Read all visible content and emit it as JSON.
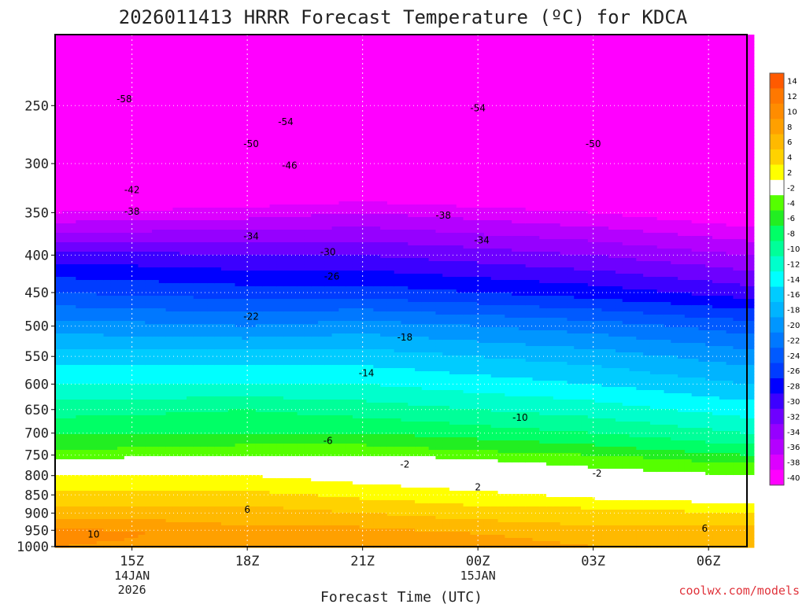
{
  "chart_data": {
    "type": "heatmap",
    "title": "2026011413 HRRR Forecast Temperature (ºC) for KDCA",
    "xlabel": "Forecast Time (UTC)",
    "ylabel": "",
    "credit": "coolwx.com/models",
    "x_start_hour": 13,
    "x_end_hour": 31,
    "ylim": [
      1000,
      200
    ],
    "yscale": "log",
    "y_ticks": [
      250,
      300,
      350,
      400,
      450,
      500,
      550,
      600,
      650,
      700,
      750,
      800,
      850,
      900,
      950,
      1000
    ],
    "x_ticks": [
      {
        "hour": 15,
        "lines": [
          "15Z",
          "14JAN",
          "2026"
        ]
      },
      {
        "hour": 18,
        "lines": [
          "18Z"
        ]
      },
      {
        "hour": 21,
        "lines": [
          "21Z"
        ]
      },
      {
        "hour": 24,
        "lines": [
          "00Z",
          "15JAN"
        ]
      },
      {
        "hour": 27,
        "lines": [
          "03Z"
        ]
      },
      {
        "hour": 30,
        "lines": [
          "06Z"
        ]
      }
    ],
    "colorbar": {
      "levels": [
        14,
        12,
        10,
        8,
        6,
        4,
        2,
        -2,
        -4,
        -6,
        -8,
        -10,
        -12,
        -14,
        -16,
        -18,
        -20,
        -22,
        -24,
        -26,
        -28,
        -30,
        -32,
        -34,
        -36,
        -38,
        -40
      ],
      "colors": [
        "#ff5a00",
        "#ff7800",
        "#ff8c00",
        "#ffa000",
        "#ffb900",
        "#ffd200",
        "#ffff00",
        "#ffffff",
        "#55ff00",
        "#22ee22",
        "#00ff66",
        "#00ff99",
        "#00ffcc",
        "#00ffff",
        "#00ccff",
        "#00b4ff",
        "#0096ff",
        "#0078ff",
        "#005aff",
        "#003cff",
        "#0000ff",
        "#3c00ff",
        "#6e00ff",
        "#9600ff",
        "#b400ff",
        "#dc00ff",
        "#ff00ff"
      ]
    },
    "profiles": [
      {
        "hour": 13,
        "temps": [
          [
            1000,
            10
          ],
          [
            960,
            11
          ],
          [
            940,
            10
          ],
          [
            900,
            7
          ],
          [
            860,
            5
          ],
          [
            820,
            3
          ],
          [
            800,
            2
          ],
          [
            790,
            0
          ],
          [
            770,
            -1
          ],
          [
            740,
            -4
          ],
          [
            700,
            -6
          ],
          [
            650,
            -9
          ],
          [
            600,
            -12
          ],
          [
            550,
            -15
          ],
          [
            500,
            -19
          ],
          [
            450,
            -24
          ],
          [
            400,
            -29
          ],
          [
            350,
            -38
          ],
          [
            300,
            -46
          ],
          [
            250,
            -56
          ],
          [
            210,
            -62
          ]
        ]
      },
      {
        "hour": 18,
        "temps": [
          [
            1000,
            9
          ],
          [
            960,
            9
          ],
          [
            940,
            8
          ],
          [
            900,
            7
          ],
          [
            860,
            5
          ],
          [
            820,
            3
          ],
          [
            800,
            2
          ],
          [
            780,
            0
          ],
          [
            760,
            -1
          ],
          [
            740,
            -3
          ],
          [
            700,
            -6
          ],
          [
            650,
            -8
          ],
          [
            600,
            -12
          ],
          [
            550,
            -15
          ],
          [
            500,
            -20
          ],
          [
            450,
            -25
          ],
          [
            400,
            -30
          ],
          [
            350,
            -37
          ],
          [
            300,
            -46
          ],
          [
            250,
            -55
          ],
          [
            210,
            -60
          ]
        ]
      },
      {
        "hour": 21,
        "temps": [
          [
            1000,
            10
          ],
          [
            960,
            9
          ],
          [
            940,
            8
          ],
          [
            900,
            6
          ],
          [
            860,
            4
          ],
          [
            820,
            2
          ],
          [
            800,
            1
          ],
          [
            780,
            0
          ],
          [
            760,
            -1
          ],
          [
            740,
            -3
          ],
          [
            700,
            -6
          ],
          [
            650,
            -9
          ],
          [
            600,
            -12
          ],
          [
            550,
            -15
          ],
          [
            500,
            -19
          ],
          [
            450,
            -25
          ],
          [
            400,
            -30
          ],
          [
            350,
            -36
          ],
          [
            300,
            -45
          ],
          [
            250,
            -54
          ],
          [
            210,
            -58
          ]
        ]
      },
      {
        "hour": 24,
        "temps": [
          [
            1000,
            9
          ],
          [
            960,
            8
          ],
          [
            940,
            7
          ],
          [
            900,
            5
          ],
          [
            860,
            3
          ],
          [
            820,
            1
          ],
          [
            800,
            0
          ],
          [
            780,
            -1
          ],
          [
            760,
            -2
          ],
          [
            740,
            -4
          ],
          [
            700,
            -7
          ],
          [
            650,
            -10
          ],
          [
            600,
            -13
          ],
          [
            550,
            -16
          ],
          [
            500,
            -20
          ],
          [
            450,
            -26
          ],
          [
            400,
            -31
          ],
          [
            350,
            -37
          ],
          [
            300,
            -46
          ],
          [
            250,
            -54
          ],
          [
            210,
            -58
          ]
        ]
      },
      {
        "hour": 27,
        "temps": [
          [
            1000,
            8
          ],
          [
            960,
            7
          ],
          [
            940,
            6
          ],
          [
            900,
            5
          ],
          [
            860,
            2
          ],
          [
            820,
            0
          ],
          [
            800,
            -1
          ],
          [
            780,
            -2
          ],
          [
            760,
            -3
          ],
          [
            740,
            -5
          ],
          [
            700,
            -8
          ],
          [
            650,
            -11
          ],
          [
            600,
            -14
          ],
          [
            550,
            -17
          ],
          [
            500,
            -21
          ],
          [
            450,
            -27
          ],
          [
            400,
            -32
          ],
          [
            350,
            -38
          ],
          [
            300,
            -46
          ],
          [
            250,
            -53
          ],
          [
            210,
            -57
          ]
        ]
      },
      {
        "hour": 31,
        "temps": [
          [
            1000,
            8
          ],
          [
            960,
            7
          ],
          [
            940,
            6
          ],
          [
            900,
            4
          ],
          [
            860,
            1
          ],
          [
            820,
            -1
          ],
          [
            800,
            -2
          ],
          [
            780,
            -3
          ],
          [
            760,
            -5
          ],
          [
            740,
            -7
          ],
          [
            700,
            -10
          ],
          [
            650,
            -13
          ],
          [
            600,
            -16
          ],
          [
            550,
            -19
          ],
          [
            500,
            -23
          ],
          [
            450,
            -29
          ],
          [
            400,
            -34
          ],
          [
            350,
            -40
          ],
          [
            300,
            -48
          ],
          [
            250,
            -52
          ],
          [
            210,
            -55
          ]
        ]
      }
    ],
    "contour_labels": [
      {
        "value": -58,
        "hour": 14.8,
        "p": 245
      },
      {
        "value": -54,
        "hour": 19.0,
        "p": 263
      },
      {
        "value": -54,
        "hour": 24.0,
        "p": 252
      },
      {
        "value": -50,
        "hour": 18.1,
        "p": 282
      },
      {
        "value": -50,
        "hour": 27.0,
        "p": 282
      },
      {
        "value": -46,
        "hour": 19.1,
        "p": 302
      },
      {
        "value": -42,
        "hour": 15.0,
        "p": 326
      },
      {
        "value": -38,
        "hour": 15.0,
        "p": 349
      },
      {
        "value": -38,
        "hour": 23.1,
        "p": 353
      },
      {
        "value": -34,
        "hour": 18.1,
        "p": 377
      },
      {
        "value": -34,
        "hour": 24.1,
        "p": 382
      },
      {
        "value": -30,
        "hour": 20.1,
        "p": 396
      },
      {
        "value": -26,
        "hour": 20.2,
        "p": 428
      },
      {
        "value": -22,
        "hour": 18.1,
        "p": 485
      },
      {
        "value": -18,
        "hour": 22.1,
        "p": 518
      },
      {
        "value": -14,
        "hour": 21.1,
        "p": 580
      },
      {
        "value": -10,
        "hour": 25.1,
        "p": 667
      },
      {
        "value": -6,
        "hour": 20.1,
        "p": 717
      },
      {
        "value": -2,
        "hour": 22.1,
        "p": 772
      },
      {
        "value": -2,
        "hour": 27.1,
        "p": 795
      },
      {
        "value": 2,
        "hour": 24.0,
        "p": 830
      },
      {
        "value": 6,
        "hour": 18.0,
        "p": 890
      },
      {
        "value": 6,
        "hour": 29.9,
        "p": 945
      },
      {
        "value": 10,
        "hour": 14.0,
        "p": 962
      }
    ]
  }
}
